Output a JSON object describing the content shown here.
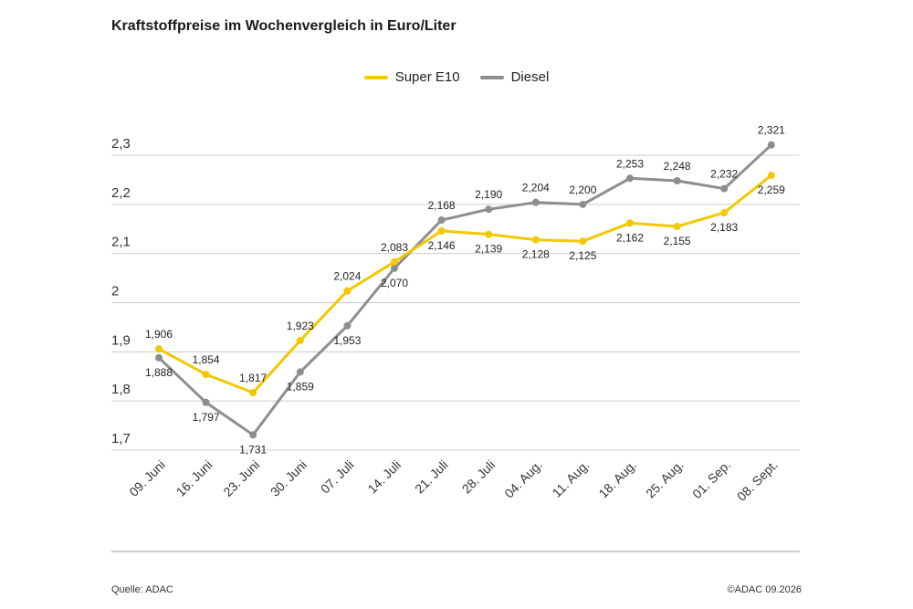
{
  "title": "Kraftstoffpreise im Wochenvergleich in Euro/Liter",
  "source": "Quelle: ADAC",
  "copyright": "©ADAC 09.2026",
  "colors": {
    "super_e10": "#f2c800",
    "diesel": "#8e8e8e",
    "grid": "#cccccc"
  },
  "chart_data": {
    "type": "line",
    "title": "Kraftstoffpreise im Wochenvergleich in Euro/Liter",
    "xlabel": "",
    "ylabel": "",
    "categories": [
      "09. Juni",
      "16. Juni",
      "23. Juni",
      "30. Juni",
      "07. Juli",
      "14. Juli",
      "21. Juli",
      "28. Juli",
      "04. Aug.",
      "11. Aug.",
      "18. Aug.",
      "25. Aug.",
      "01. Sep.",
      "08. Sept."
    ],
    "ylim": [
      1.7,
      2.3
    ],
    "yticks": [
      1.7,
      1.8,
      1.9,
      2.0,
      2.1,
      2.2,
      2.3
    ],
    "ytick_labels": [
      "1,7",
      "1,8",
      "1,9",
      "2",
      "2,1",
      "2,2",
      "2,3"
    ],
    "grid": true,
    "legend_position": "top-center",
    "series": [
      {
        "name": "Super E10",
        "color": "#f2c800",
        "values": [
          1.906,
          1.854,
          1.817,
          1.923,
          2.024,
          2.083,
          2.146,
          2.139,
          2.128,
          2.125,
          2.162,
          2.155,
          2.183,
          2.259
        ],
        "labels": [
          "1,906",
          "1,854",
          "1,817",
          "1,923",
          "2,024",
          "2,083",
          "2,146",
          "2,139",
          "2,128",
          "2,125",
          "2,162",
          "2,155",
          "2,183",
          "2,259"
        ]
      },
      {
        "name": "Diesel",
        "color": "#8e8e8e",
        "values": [
          1.888,
          1.797,
          1.731,
          1.859,
          1.953,
          2.07,
          2.168,
          2.19,
          2.204,
          2.2,
          2.253,
          2.248,
          2.232,
          2.321
        ],
        "labels": [
          "1,888",
          "1,797",
          "1,731",
          "1,859",
          "1,953",
          "2,070",
          "2,168",
          "2,190",
          "2,204",
          "2,200",
          "2,253",
          "2,248",
          "2,232",
          "2,321"
        ]
      }
    ]
  }
}
